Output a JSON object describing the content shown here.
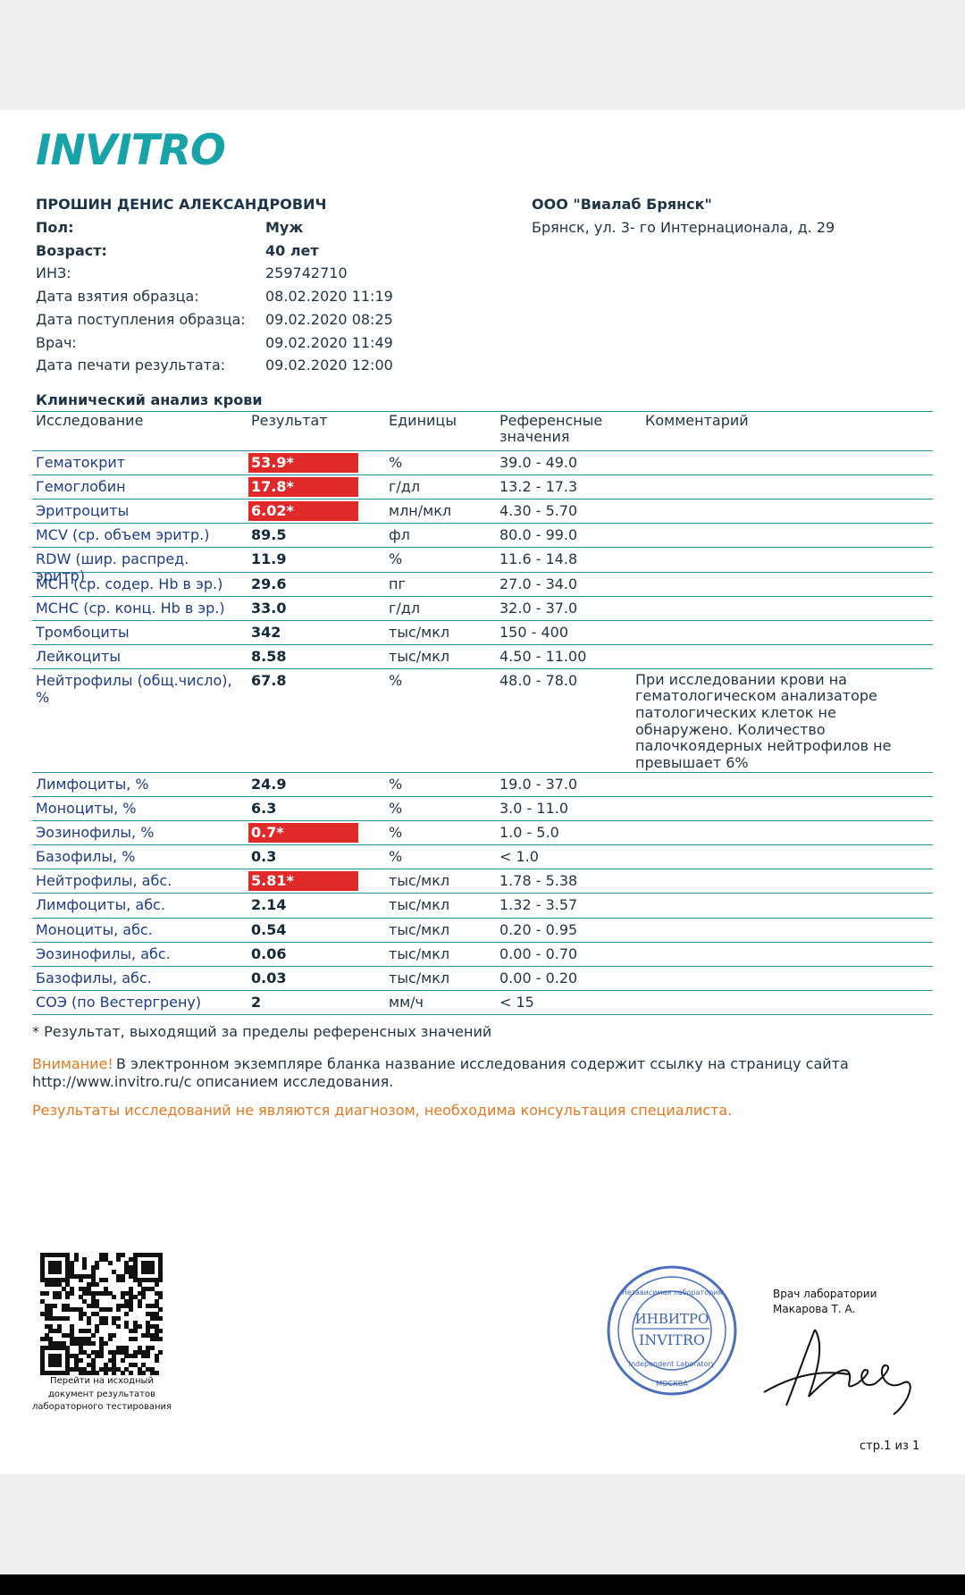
{
  "header": {
    "logo": "INVITRO"
  },
  "patient": {
    "name": "ПРОШИН ДЕНИС АЛЕКСАНДРОВИЧ",
    "fields": [
      {
        "label": "Пол:",
        "value": "Муж",
        "bold": true
      },
      {
        "label": "Возраст:",
        "value": "40 лет",
        "bold": true
      },
      {
        "label": "ИНЗ:",
        "value": "259742710",
        "bold": false
      },
      {
        "label": "Дата взятия образца:",
        "value": "08.02.2020 11:19",
        "bold": false
      },
      {
        "label": "Дата поступления образца:",
        "value": "09.02.2020 08:25",
        "bold": false
      },
      {
        "label": "Врач:",
        "value": "09.02.2020 11:49",
        "bold": false
      },
      {
        "label": "Дата печати результата:",
        "value": "09.02.2020 12:00",
        "bold": false
      }
    ]
  },
  "lab": {
    "name": "ООО \"Виалаб Брянск\"",
    "address": "Брянск, ул. 3- го Интернационала, д. 29"
  },
  "table": {
    "title": "Клинический анализ крови",
    "headers": [
      "Исследование",
      "Результат",
      "Единицы",
      "Референсные значения",
      "Комментарий"
    ],
    "rows": [
      {
        "name": "Гематокрит",
        "result": "53.9*",
        "unit": "%",
        "ref": "39.0 - 49.0",
        "flag": true
      },
      {
        "name": "Гемоглобин",
        "result": "17.8*",
        "unit": "г/дл",
        "ref": "13.2 - 17.3",
        "flag": true
      },
      {
        "name": "Эритроциты",
        "result": "6.02*",
        "unit": "млн/мкл",
        "ref": "4.30 - 5.70",
        "flag": true
      },
      {
        "name": "MCV (ср. объем эритр.)",
        "result": "89.5",
        "unit": "фл",
        "ref": "80.0 - 99.0",
        "flag": false
      },
      {
        "name": "RDW (шир. распред. эритр)",
        "result": "11.9",
        "unit": "%",
        "ref": "11.6 - 14.8",
        "flag": false
      },
      {
        "name": "MCH (ср. содер. Hb в эр.)",
        "result": "29.6",
        "unit": "пг",
        "ref": "27.0 - 34.0",
        "flag": false
      },
      {
        "name": "MCHC (ср. конц. Hb в эр.)",
        "result": "33.0",
        "unit": "г/дл",
        "ref": "32.0 - 37.0",
        "flag": false
      },
      {
        "name": "Тромбоциты",
        "result": "342",
        "unit": "тыс/мкл",
        "ref": "150 - 400",
        "flag": false
      },
      {
        "name": "Лейкоциты",
        "result": "8.58",
        "unit": "тыс/мкл",
        "ref": "4.50 - 11.00",
        "flag": false
      },
      {
        "name": "Нейтрофилы (общ.число), %",
        "result": "67.8",
        "unit": "%",
        "ref": "48.0 - 78.0",
        "flag": false,
        "comment": "При исследовании крови на гематологическом анализаторе патологических клеток не обнаружено. Количество палочкоядерных нейтрофилов не превышает 6%"
      },
      {
        "name": "Лимфоциты, %",
        "result": "24.9",
        "unit": "%",
        "ref": "19.0 - 37.0",
        "flag": false
      },
      {
        "name": "Моноциты, %",
        "result": "6.3",
        "unit": "%",
        "ref": "3.0 - 11.0",
        "flag": false
      },
      {
        "name": "Эозинофилы, %",
        "result": "0.7*",
        "unit": "%",
        "ref": "1.0 - 5.0",
        "flag": true
      },
      {
        "name": "Базофилы, %",
        "result": "0.3",
        "unit": "%",
        "ref": "< 1.0",
        "flag": false
      },
      {
        "name": "Нейтрофилы, абс.",
        "result": "5.81*",
        "unit": "тыс/мкл",
        "ref": "1.78 - 5.38",
        "flag": true
      },
      {
        "name": "Лимфоциты, абс.",
        "result": "2.14",
        "unit": "тыс/мкл",
        "ref": "1.32 - 3.57",
        "flag": false
      },
      {
        "name": "Моноциты, абс.",
        "result": "0.54",
        "unit": "тыс/мкл",
        "ref": "0.20 - 0.95",
        "flag": false
      },
      {
        "name": "Эозинофилы, абс.",
        "result": "0.06",
        "unit": "тыс/мкл",
        "ref": "0.00 - 0.70",
        "flag": false
      },
      {
        "name": "Базофилы, абс.",
        "result": "0.03",
        "unit": "тыс/мкл",
        "ref": "0.00 - 0.20",
        "flag": false
      },
      {
        "name": "СОЭ (по Вестергрену)",
        "result": "2",
        "unit": "мм/ч",
        "ref": "< 15",
        "flag": false
      }
    ]
  },
  "footnote": "* Результат, выходящий за пределы референсных значений",
  "attention": {
    "label": "Внимание!",
    "line1": "В электронном экземпляре бланка название исследования содержит ссылку на страницу сайта",
    "line2": "http://www.invitro.ru/с описанием исследования."
  },
  "disclaimer": "Результаты исследований не являются диагнозом, необходима консультация специалиста.",
  "qr_caption": [
    "Перейти на исходный",
    "документ результатов",
    "лабораторного тестирования"
  ],
  "stamp": {
    "ru": "ИНВИТРО",
    "en": "INVITRO",
    "top": "Независимая лаборатория",
    "bottom": "Independent Laboratory",
    "city": "МОСКВА"
  },
  "doctor": {
    "title": "Врач лаборатории",
    "name": "Макарова Т. А."
  },
  "page_number": "стр.1 из 1"
}
